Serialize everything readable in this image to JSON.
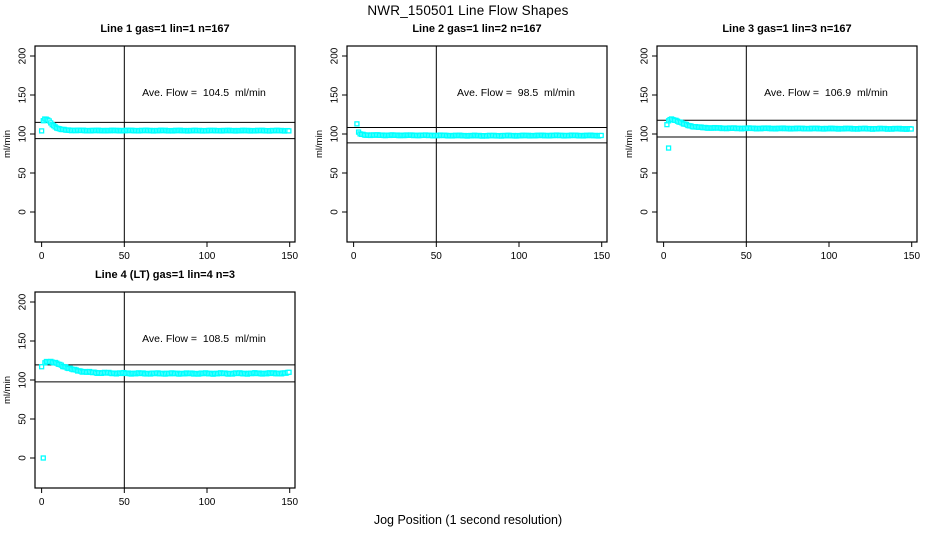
{
  "page": {
    "title": "NWR_150501  Line Flow Shapes",
    "xlabel": "Jog Position (1 second resolution)",
    "background": "#ffffff",
    "axis_color": "#000000",
    "marker_color": "#00ffff"
  },
  "chart_data": [
    {
      "type": "scatter",
      "title": "Line 1 gas=1 lin=1 n=167",
      "annotation": "Ave. Flow =  104.5  ml/min",
      "ave_flow_ml_min": 104.5,
      "n": 167,
      "ylabel": "ml/min",
      "marker": "open-square",
      "marker_color": "#00ffff",
      "x_ticks": [
        0,
        50,
        100,
        150
      ],
      "y_ticks": [
        0,
        50,
        100,
        150,
        200
      ],
      "xlim": [
        -4,
        153.2
      ],
      "ylim": [
        -38.5,
        212.8
      ],
      "grid": false,
      "vline_x": 50,
      "hlines": [
        114.95,
        94.05
      ],
      "outlier_points": [
        [
          0,
          104
        ]
      ],
      "curve_keypoints": [
        [
          1,
          117
        ],
        [
          2,
          119
        ],
        [
          3,
          119
        ],
        [
          4,
          117.5
        ],
        [
          5,
          115.5
        ],
        [
          6,
          113
        ],
        [
          7,
          111
        ],
        [
          8,
          109.5
        ],
        [
          10,
          107
        ],
        [
          12,
          105.8
        ],
        [
          15,
          105
        ],
        [
          20,
          104.6
        ],
        [
          30,
          104.4
        ],
        [
          60,
          104.4
        ],
        [
          100,
          104.3
        ],
        [
          150,
          104.3
        ]
      ],
      "jitter": 0.5
    },
    {
      "type": "scatter",
      "title": "Line 2 gas=1 lin=2 n=167",
      "annotation": "Ave. Flow =  98.5  ml/min",
      "ave_flow_ml_min": 98.5,
      "n": 167,
      "ylabel": "ml/min",
      "marker": "open-square",
      "marker_color": "#00ffff",
      "x_ticks": [
        0,
        50,
        100,
        150
      ],
      "y_ticks": [
        0,
        50,
        100,
        150,
        200
      ],
      "xlim": [
        -4,
        153.2
      ],
      "ylim": [
        -38.5,
        212.8
      ],
      "grid": false,
      "vline_x": 50,
      "hlines": [
        108.35,
        88.65
      ],
      "outlier_points": [
        [
          2,
          113
        ]
      ],
      "curve_keypoints": [
        [
          3,
          102
        ],
        [
          4,
          100
        ],
        [
          5,
          99.3
        ],
        [
          7,
          98.8
        ],
        [
          10,
          98.6
        ],
        [
          20,
          98.4
        ],
        [
          40,
          98.3
        ],
        [
          60,
          98.0
        ],
        [
          80,
          97.8
        ],
        [
          100,
          97.9
        ],
        [
          120,
          98.1
        ],
        [
          150,
          98.0
        ]
      ],
      "jitter": 0.55
    },
    {
      "type": "scatter",
      "title": "Line 3 gas=1 lin=3 n=167",
      "annotation": "Ave. Flow =  106.9  ml/min",
      "ave_flow_ml_min": 106.9,
      "n": 167,
      "ylabel": "ml/min",
      "marker": "open-square",
      "marker_color": "#00ffff",
      "x_ticks": [
        0,
        50,
        100,
        150
      ],
      "y_ticks": [
        0,
        50,
        100,
        150,
        200
      ],
      "xlim": [
        -4,
        153.2
      ],
      "ylim": [
        -38.5,
        212.8
      ],
      "grid": false,
      "vline_x": 50,
      "hlines": [
        117.59,
        96.21
      ],
      "outlier_points": [
        [
          2,
          112
        ],
        [
          3,
          82
        ]
      ],
      "curve_keypoints": [
        [
          3,
          117
        ],
        [
          4,
          118.5
        ],
        [
          5,
          119
        ],
        [
          6,
          118.5
        ],
        [
          8,
          117
        ],
        [
          10,
          115
        ],
        [
          12,
          113
        ],
        [
          15,
          111
        ],
        [
          18,
          109.5
        ],
        [
          22,
          108.5
        ],
        [
          28,
          107.8
        ],
        [
          40,
          107.3
        ],
        [
          80,
          107
        ],
        [
          150,
          106.6
        ]
      ],
      "jitter": 0.6
    },
    {
      "type": "scatter",
      "title": "Line 4 (LT) gas=1 lin=4 n=3",
      "annotation": "Ave. Flow =  108.5  ml/min",
      "ave_flow_ml_min": 108.5,
      "n": 3,
      "ylabel": "ml/min",
      "marker": "open-square",
      "marker_color": "#00ffff",
      "x_ticks": [
        0,
        50,
        100,
        150
      ],
      "y_ticks": [
        0,
        50,
        100,
        150,
        200
      ],
      "xlim": [
        -4,
        153.2
      ],
      "ylim": [
        -38.5,
        212.8
      ],
      "grid": false,
      "vline_x": 50,
      "hlines": [
        119.35,
        97.65
      ],
      "outlier_points": [
        [
          0,
          117
        ],
        [
          1,
          0
        ]
      ],
      "curve_keypoints": [
        [
          2,
          122
        ],
        [
          3,
          123.5
        ],
        [
          4,
          124
        ],
        [
          6,
          123.5
        ],
        [
          8,
          122
        ],
        [
          10,
          120.5
        ],
        [
          12,
          118.5
        ],
        [
          14,
          117
        ],
        [
          16,
          115.5
        ],
        [
          18,
          114
        ],
        [
          20,
          112.8
        ],
        [
          23,
          111.5
        ],
        [
          26,
          110.5
        ],
        [
          30,
          109.8
        ],
        [
          35,
          109.2
        ],
        [
          45,
          108.7
        ],
        [
          60,
          108.4
        ],
        [
          90,
          108.3
        ],
        [
          120,
          108.4
        ],
        [
          146,
          108.6
        ],
        [
          150,
          109.3
        ]
      ],
      "jitter": 0.9
    }
  ]
}
